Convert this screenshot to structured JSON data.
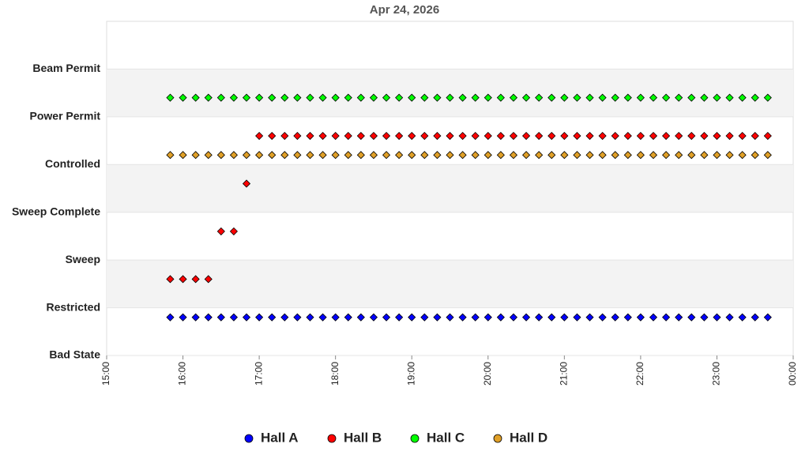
{
  "chart_data": {
    "type": "scatter",
    "title": "Apr 24, 2026",
    "x": [
      950,
      960,
      970,
      980,
      990,
      1000,
      1010,
      1020,
      1030,
      1040,
      1050,
      1060,
      1070,
      1080,
      1090,
      1100,
      1110,
      1120,
      1130,
      1140,
      1150,
      1160,
      1170,
      1180,
      1190,
      1200,
      1210,
      1220,
      1230,
      1240,
      1250,
      1260,
      1270,
      1280,
      1290,
      1300,
      1310,
      1320,
      1330,
      1340,
      1350,
      1360,
      1370,
      1380,
      1390,
      1400,
      1410,
      1420
    ],
    "xlim": [
      900,
      1440
    ],
    "xticks": [
      {
        "value": 900,
        "label": "15:00"
      },
      {
        "value": 960,
        "label": "16:00"
      },
      {
        "value": 1020,
        "label": "17:00"
      },
      {
        "value": 1080,
        "label": "18:00"
      },
      {
        "value": 1140,
        "label": "19:00"
      },
      {
        "value": 1200,
        "label": "20:00"
      },
      {
        "value": 1260,
        "label": "21:00"
      },
      {
        "value": 1320,
        "label": "22:00"
      },
      {
        "value": 1380,
        "label": "23:00"
      },
      {
        "value": 1440,
        "label": "00:00"
      }
    ],
    "ylim": [
      0,
      7
    ],
    "yticks": [
      {
        "value": 0,
        "label": "Bad State"
      },
      {
        "value": 1,
        "label": "Restricted"
      },
      {
        "value": 2,
        "label": "Sweep"
      },
      {
        "value": 3,
        "label": "Sweep Complete"
      },
      {
        "value": 4,
        "label": "Controlled"
      },
      {
        "value": 5,
        "label": "Power Permit"
      },
      {
        "value": 6,
        "label": "Beam Permit"
      }
    ],
    "grid": true,
    "legend": "bottom",
    "series": [
      {
        "name": "Hall A",
        "color": "#0000ff",
        "values": [
          0.8,
          0.8,
          0.8,
          0.8,
          0.8,
          0.8,
          0.8,
          0.8,
          0.8,
          0.8,
          0.8,
          0.8,
          0.8,
          0.8,
          0.8,
          0.8,
          0.8,
          0.8,
          0.8,
          0.8,
          0.8,
          0.8,
          0.8,
          0.8,
          0.8,
          0.8,
          0.8,
          0.8,
          0.8,
          0.8,
          0.8,
          0.8,
          0.8,
          0.8,
          0.8,
          0.8,
          0.8,
          0.8,
          0.8,
          0.8,
          0.8,
          0.8,
          0.8,
          0.8,
          0.8,
          0.8,
          0.8,
          0.8
        ]
      },
      {
        "name": "Hall B",
        "color": "#ff0000",
        "values": [
          1.6,
          1.6,
          1.6,
          1.6,
          2.6,
          2.6,
          3.6,
          4.6,
          4.6,
          4.6,
          4.6,
          4.6,
          4.6,
          4.6,
          4.6,
          4.6,
          4.6,
          4.6,
          4.6,
          4.6,
          4.6,
          4.6,
          4.6,
          4.6,
          4.6,
          4.6,
          4.6,
          4.6,
          4.6,
          4.6,
          4.6,
          4.6,
          4.6,
          4.6,
          4.6,
          4.6,
          4.6,
          4.6,
          4.6,
          4.6,
          4.6,
          4.6,
          4.6,
          4.6,
          4.6,
          4.6,
          4.6,
          4.6
        ]
      },
      {
        "name": "Hall C",
        "color": "#00ff00",
        "values": [
          5.4,
          5.4,
          5.4,
          5.4,
          5.4,
          5.4,
          5.4,
          5.4,
          5.4,
          5.4,
          5.4,
          5.4,
          5.4,
          5.4,
          5.4,
          5.4,
          5.4,
          5.4,
          5.4,
          5.4,
          5.4,
          5.4,
          5.4,
          5.4,
          5.4,
          5.4,
          5.4,
          5.4,
          5.4,
          5.4,
          5.4,
          5.4,
          5.4,
          5.4,
          5.4,
          5.4,
          5.4,
          5.4,
          5.4,
          5.4,
          5.4,
          5.4,
          5.4,
          5.4,
          5.4,
          5.4,
          5.4,
          5.4
        ]
      },
      {
        "name": "Hall D",
        "color": "#e0a028",
        "values": [
          4.2,
          4.2,
          4.2,
          4.2,
          4.2,
          4.2,
          4.2,
          4.2,
          4.2,
          4.2,
          4.2,
          4.2,
          4.2,
          4.2,
          4.2,
          4.2,
          4.2,
          4.2,
          4.2,
          4.2,
          4.2,
          4.2,
          4.2,
          4.2,
          4.2,
          4.2,
          4.2,
          4.2,
          4.2,
          4.2,
          4.2,
          4.2,
          4.2,
          4.2,
          4.2,
          4.2,
          4.2,
          4.2,
          4.2,
          4.2,
          4.2,
          4.2,
          4.2,
          4.2,
          4.2,
          4.2,
          4.2,
          4.2
        ]
      }
    ]
  }
}
